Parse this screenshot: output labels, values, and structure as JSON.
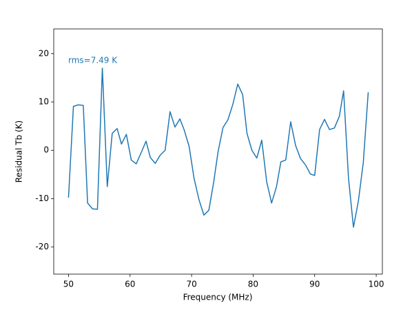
{
  "chart_data": {
    "type": "line",
    "xlabel": "Frequency (MHz)",
    "ylabel": "Residual Tb (K)",
    "annotation": "rms=7.49 K",
    "x": [
      50.0,
      50.8,
      51.6,
      52.4,
      53.1,
      53.9,
      54.7,
      55.5,
      56.3,
      57.1,
      57.9,
      58.6,
      59.4,
      60.2,
      61.0,
      61.8,
      62.6,
      63.3,
      64.1,
      64.9,
      65.7,
      66.5,
      67.3,
      68.1,
      68.8,
      69.6,
      70.4,
      71.2,
      72.0,
      72.8,
      73.6,
      74.3,
      75.1,
      75.9,
      76.7,
      77.5,
      78.3,
      79.0,
      79.8,
      80.6,
      81.4,
      82.2,
      83.0,
      83.8,
      84.5,
      85.3,
      86.1,
      86.9,
      87.7,
      88.5,
      89.3,
      90.0,
      90.8,
      91.6,
      92.4,
      93.2,
      94.0,
      94.7,
      95.5,
      96.3,
      97.1,
      97.9,
      98.7
    ],
    "series": [
      {
        "color": "#1f77b4",
        "values": [
          -9.8,
          9.1,
          9.4,
          9.3,
          -10.9,
          -12.1,
          -12.2,
          17.0,
          -7.5,
          3.5,
          4.5,
          1.3,
          3.3,
          -2.0,
          -2.8,
          -0.5,
          1.9,
          -1.5,
          -2.7,
          -1.0,
          0.0,
          8.0,
          4.8,
          6.5,
          4.2,
          0.8,
          -5.8,
          -10.2,
          -13.4,
          -12.4,
          -6.5,
          -0.3,
          4.7,
          6.3,
          9.5,
          13.7,
          11.5,
          3.5,
          0.0,
          -1.6,
          2.1,
          -6.5,
          -10.9,
          -7.5,
          -2.4,
          -2.0,
          5.9,
          1.0,
          -1.7,
          -3.0,
          -4.9,
          -5.2,
          4.3,
          6.4,
          4.3,
          4.6,
          7.0,
          12.3,
          -5.8,
          -15.9,
          -10.5,
          -2.5,
          12.0
        ]
      }
    ],
    "xlim": [
      47.6,
      101.0
    ],
    "ylim": [
      -25.6,
      25.1
    ],
    "xticks": [
      50,
      60,
      70,
      80,
      90,
      100
    ],
    "yticks": [
      -20,
      -10,
      0,
      10,
      20
    ],
    "grid": false
  }
}
